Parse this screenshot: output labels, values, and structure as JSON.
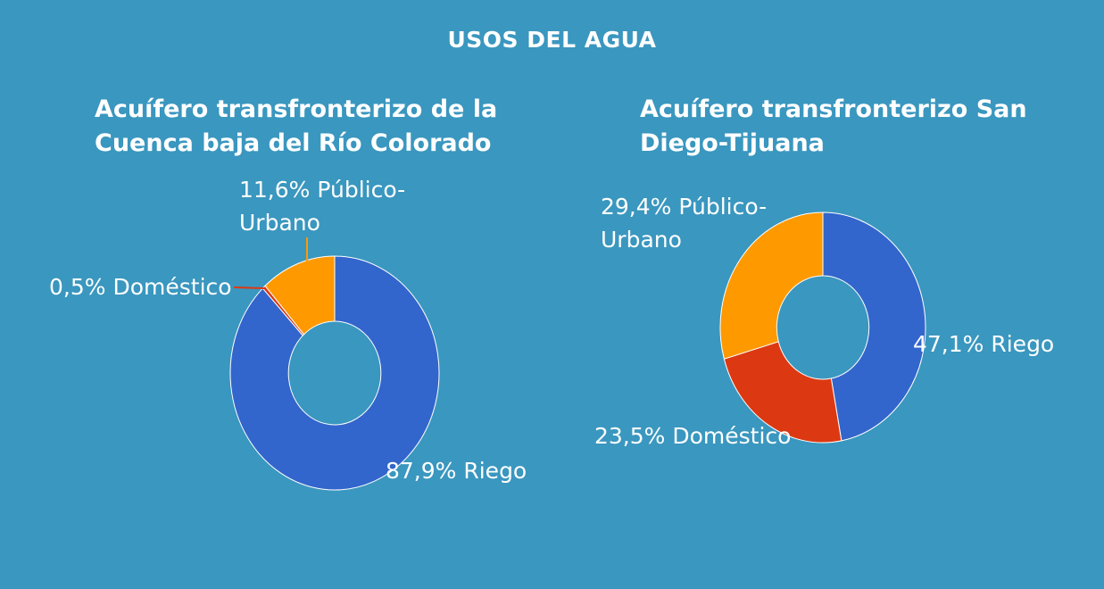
{
  "header": {
    "title": "USOS DEL AGUA"
  },
  "chart_data": [
    {
      "type": "pie",
      "title": "Acuífero transfronterizo de la Cuenca baja del Río Colorado",
      "slices": [
        {
          "label": "Riego",
          "value": 87.9,
          "value_label": "87,9%",
          "color": "#3366cc"
        },
        {
          "label": "Doméstico",
          "value": 0.5,
          "value_label": "0,5%",
          "color": "#dc3912"
        },
        {
          "label": "Público-Urbano",
          "value": 11.6,
          "value_label": "11,6%",
          "color": "#ff9900"
        }
      ]
    },
    {
      "type": "pie",
      "title": "Acuífero transfronterizo San Diego-Tijuana",
      "slices": [
        {
          "label": "Riego",
          "value": 47.1,
          "value_label": "47,1%",
          "color": "#3366cc"
        },
        {
          "label": "Doméstico",
          "value": 23.5,
          "value_label": "23,5%",
          "color": "#dc3912"
        },
        {
          "label": "Público-Urbano",
          "value": 29.4,
          "value_label": "29,4%",
          "color": "#ff9900"
        }
      ]
    }
  ]
}
